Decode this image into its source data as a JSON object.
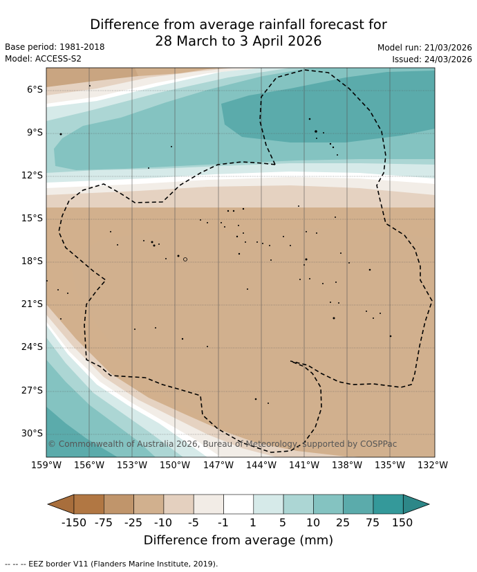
{
  "title": {
    "line1": "Difference from average rainfall forecast for",
    "line2": "28 March to 3 April 2026"
  },
  "header": {
    "base_period": "Base period: 1981-2018",
    "model": "Model: ACCESS-S2",
    "model_run": "Model run: 21/03/2026",
    "issued": "Issued: 24/03/2026"
  },
  "map": {
    "lat_labels": [
      "6°S",
      "9°S",
      "12°S",
      "15°S",
      "18°S",
      "21°S",
      "24°S",
      "27°S",
      "30°S"
    ],
    "lon_labels": [
      "159°W",
      "156°W",
      "153°W",
      "150°W",
      "147°W",
      "144°W",
      "141°W",
      "138°W",
      "135°W",
      "132°W"
    ],
    "copyright": "© Commonwealth of Australia 2026, Bureau of Meteorology, supported by COSPPac"
  },
  "colorbar": {
    "tick_labels": [
      "-150",
      "-75",
      "-25",
      "-10",
      "-5",
      "-1",
      "1",
      "5",
      "10",
      "25",
      "75",
      "150"
    ],
    "colors": [
      "#a86e3c",
      "#b17743",
      "#c0956b",
      "#d1b08e",
      "#e4d0bf",
      "#f2ece6",
      "#ffffff",
      "#d6eae9",
      "#acd6d4",
      "#84c3c1",
      "#5babab",
      "#34999a",
      "#2d8788"
    ],
    "title": "Difference from average (mm)"
  },
  "footnote": "--  --  -- EEZ border V11 (Flanders Marine Institute, 2019)."
}
